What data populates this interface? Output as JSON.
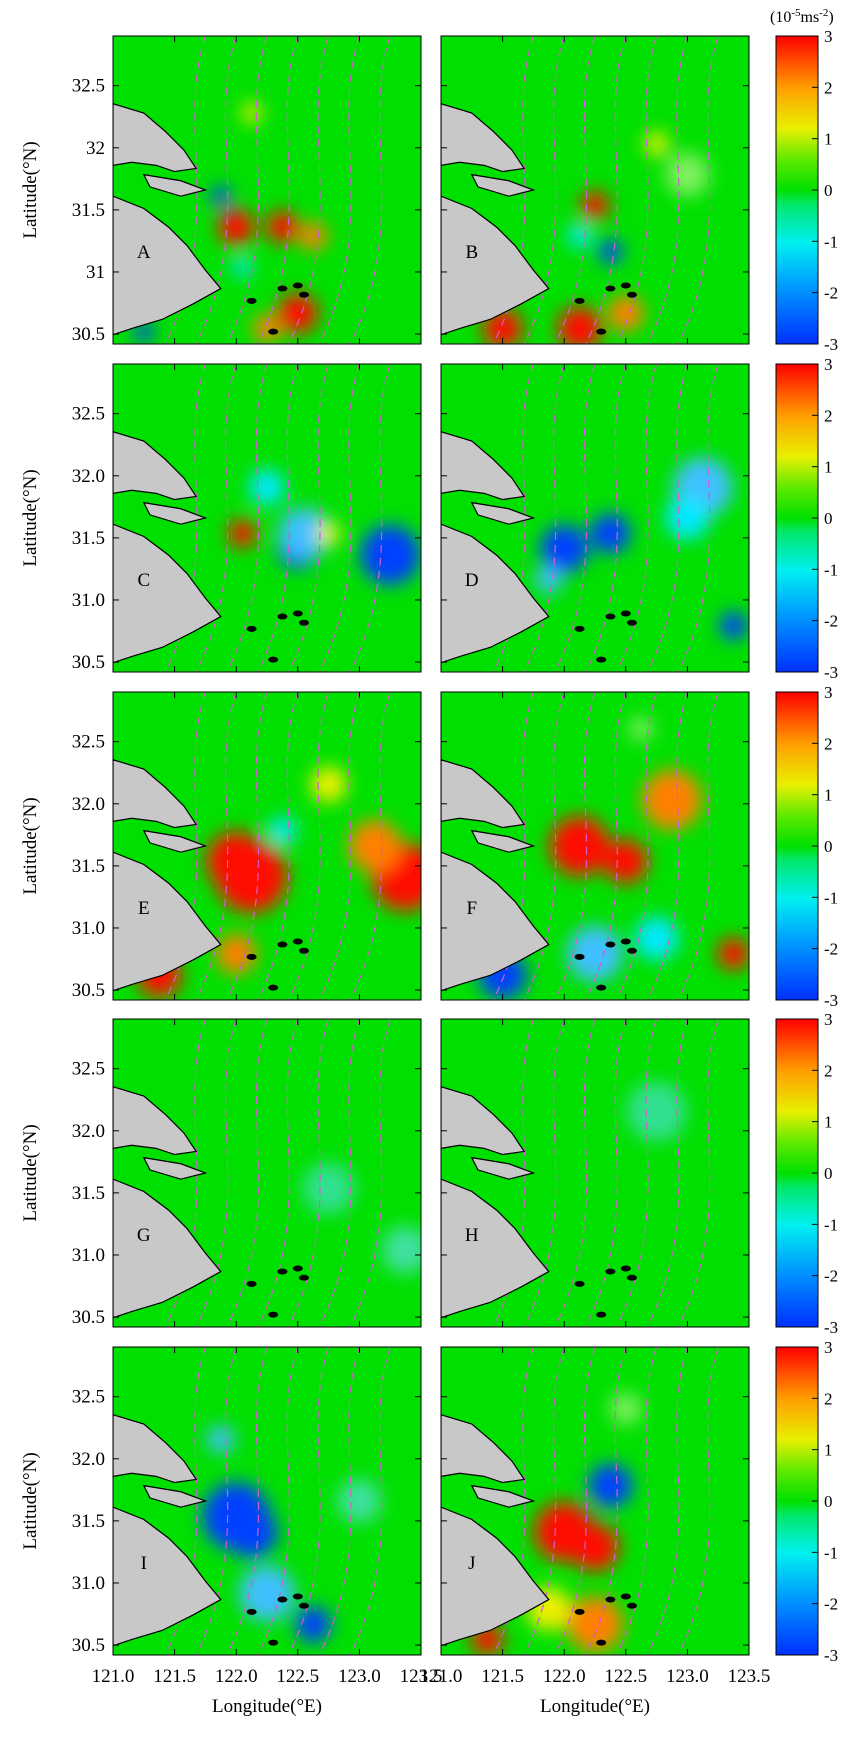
{
  "figure": {
    "x_axis": {
      "label": "Longitude(°E)",
      "lim": [
        121,
        123.5
      ],
      "ticks": [
        {
          "value": 121,
          "label": "121.0"
        },
        121.5,
        {
          "value": 122,
          "label": "122.0"
        },
        122.5,
        {
          "value": 123,
          "label": "123.0"
        },
        123.5
      ]
    },
    "y_axis": {
      "label": "Latitude(°N)",
      "lim": [
        30.42,
        32.9
      ]
    },
    "colorbar": {
      "unit": {
        "open": "(10",
        "exp": "-5",
        "unit": "ms",
        "unit_exp": "-2",
        "close": ")"
      },
      "lim": [
        -3,
        3
      ],
      "ticks": [
        -3,
        -2,
        -1,
        0,
        1,
        2,
        3
      ]
    },
    "rows": [
      {
        "y_ticks": [
          32.5,
          32,
          31.5,
          31,
          30.5
        ],
        "panels": [
          "A",
          "B"
        ]
      },
      {
        "y_ticks": [
          32.5,
          {
            "value": 32,
            "label": "32.0"
          },
          31.5,
          {
            "value": 31,
            "label": "31.0"
          },
          30.5
        ],
        "panels": [
          "C",
          "D"
        ]
      },
      {
        "y_ticks": [
          32.5,
          {
            "value": 32,
            "label": "32.0"
          },
          31.5,
          {
            "value": 31,
            "label": "31.0"
          },
          30.5
        ],
        "panels": [
          "E",
          "F"
        ]
      },
      {
        "y_ticks": [
          32.5,
          {
            "value": 32,
            "label": "32.0"
          },
          31.5,
          {
            "value": 31,
            "label": "31.0"
          },
          30.5
        ],
        "panels": [
          "G",
          "H"
        ]
      },
      {
        "y_ticks": [
          32.5,
          {
            "value": 32,
            "label": "32.0"
          },
          31.5,
          {
            "value": 31,
            "label": "31.0"
          },
          30.5
        ],
        "panels": [
          "I",
          "J"
        ]
      }
    ]
  }
}
